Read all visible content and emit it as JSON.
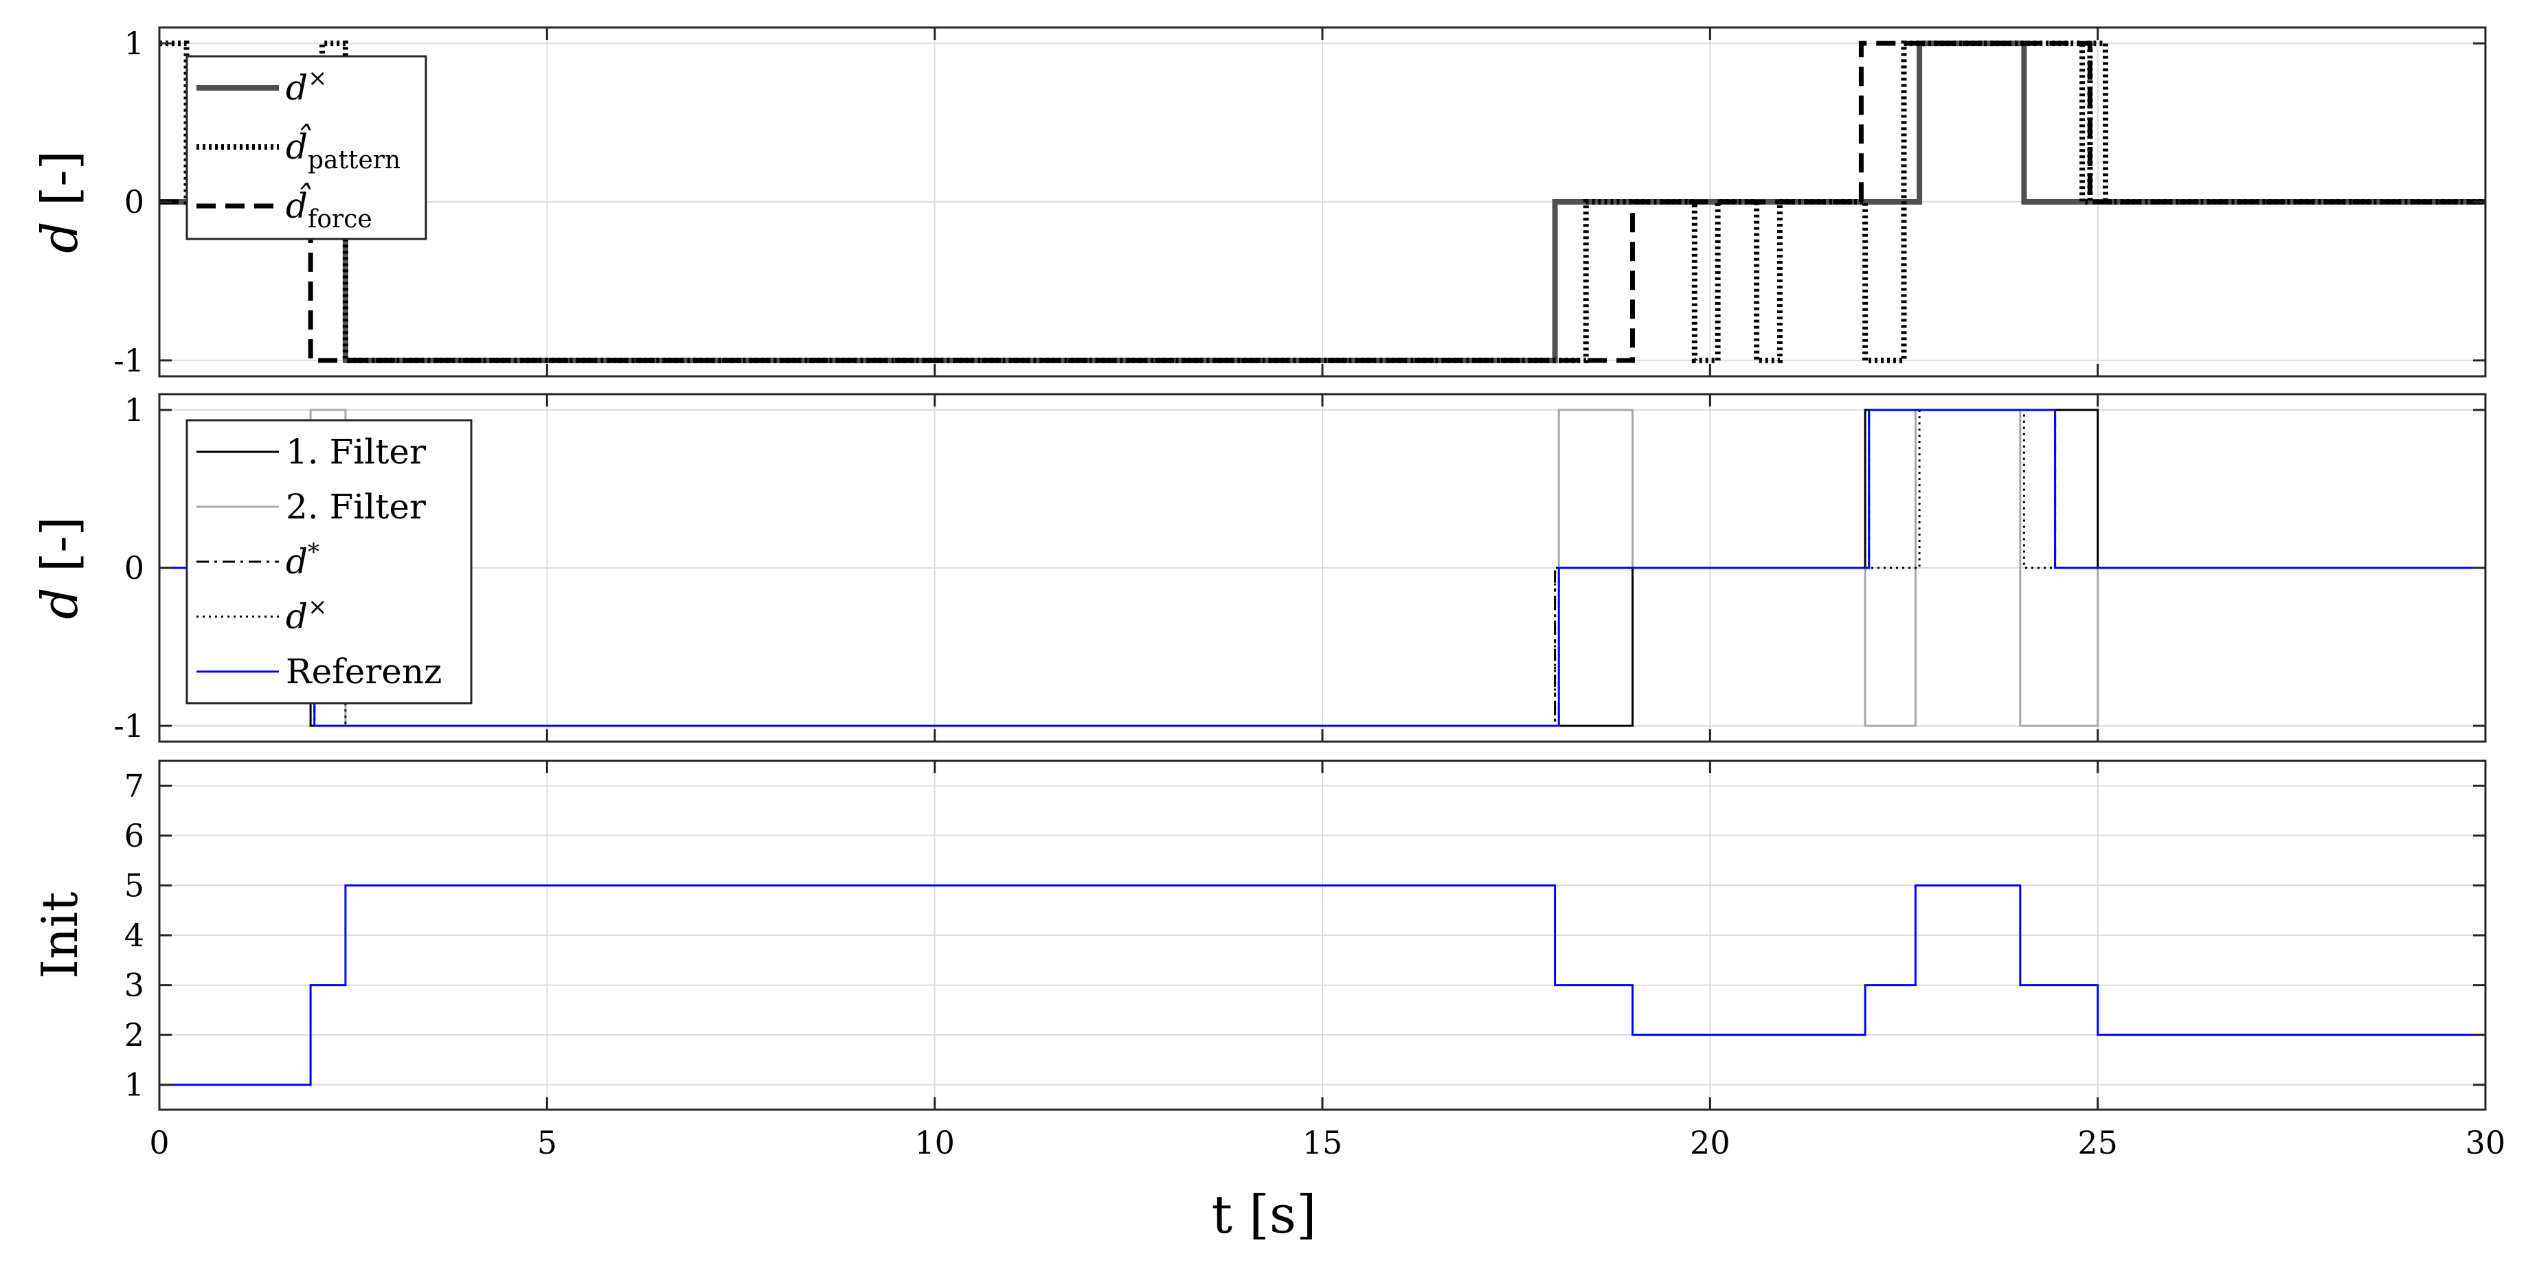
{
  "figure": {
    "xlabel": "t [s]",
    "xlim": [
      0,
      30
    ],
    "xticks": [
      0,
      5,
      10,
      15,
      20,
      25,
      30
    ],
    "grid": true
  },
  "chart_data": [
    {
      "type": "line",
      "ylabel": "d [-]",
      "xlim": [
        0,
        30
      ],
      "ylim": [
        -1.1,
        1.1
      ],
      "yticks": [
        -1,
        0,
        1
      ],
      "legend_position": "top-left",
      "series": [
        {
          "name": "d×",
          "color": "#505050",
          "style": "solid-thick",
          "points": [
            [
              0,
              0
            ],
            [
              2.4,
              0
            ],
            [
              2.4,
              -1
            ],
            [
              18.0,
              -1
            ],
            [
              18.0,
              0
            ],
            [
              22.7,
              0
            ],
            [
              22.7,
              1
            ],
            [
              24.05,
              1
            ],
            [
              24.05,
              0
            ],
            [
              30,
              0
            ]
          ]
        },
        {
          "name": "d̂pattern",
          "color": "#000000",
          "style": "dotted-thick",
          "points": [
            [
              0,
              1
            ],
            [
              0.35,
              1
            ],
            [
              0.35,
              0
            ],
            [
              2.1,
              0
            ],
            [
              2.1,
              1
            ],
            [
              2.4,
              1
            ],
            [
              2.4,
              -1
            ],
            [
              18.4,
              -1
            ],
            [
              18.4,
              0
            ],
            [
              19.8,
              0
            ],
            [
              19.8,
              -1
            ],
            [
              20.1,
              -1
            ],
            [
              20.1,
              0
            ],
            [
              20.6,
              0
            ],
            [
              20.6,
              -1
            ],
            [
              20.9,
              -1
            ],
            [
              20.9,
              0
            ],
            [
              22.0,
              0
            ],
            [
              22.0,
              -1
            ],
            [
              22.5,
              -1
            ],
            [
              22.5,
              1
            ],
            [
              24.8,
              1
            ],
            [
              24.8,
              0
            ],
            [
              24.9,
              0
            ],
            [
              24.9,
              1
            ],
            [
              25.1,
              1
            ],
            [
              25.1,
              0
            ],
            [
              30,
              0
            ]
          ]
        },
        {
          "name": "d̂force",
          "color": "#000000",
          "style": "dashed-thick",
          "points": [
            [
              0,
              0
            ],
            [
              1.95,
              0
            ],
            [
              1.95,
              -1
            ],
            [
              19.0,
              -1
            ],
            [
              19.0,
              0
            ],
            [
              21.95,
              0
            ],
            [
              21.95,
              1
            ],
            [
              24.9,
              1
            ],
            [
              24.9,
              0
            ],
            [
              30,
              0
            ]
          ]
        }
      ]
    },
    {
      "type": "line",
      "ylabel": "d [-]",
      "xlim": [
        0,
        30
      ],
      "ylim": [
        -1.1,
        1.1
      ],
      "yticks": [
        -1,
        0,
        1
      ],
      "legend_position": "top-left",
      "series": [
        {
          "name": "1. Filter",
          "color": "#000000",
          "style": "solid",
          "points": [
            [
              0,
              0
            ],
            [
              1.95,
              0
            ],
            [
              1.95,
              -1
            ],
            [
              19.0,
              -1
            ],
            [
              19.0,
              0
            ],
            [
              22.0,
              0
            ],
            [
              22.0,
              1
            ],
            [
              25.0,
              1
            ],
            [
              25.0,
              0
            ],
            [
              30,
              0
            ]
          ]
        },
        {
          "name": "2. Filter",
          "color": "#a8a8a8",
          "style": "solid",
          "points": [
            [
              0,
              0
            ],
            [
              1.95,
              0
            ],
            [
              1.95,
              1
            ],
            [
              2.4,
              1
            ],
            [
              2.4,
              -1
            ],
            [
              18.05,
              -1
            ],
            [
              18.05,
              1
            ],
            [
              19.0,
              1
            ],
            [
              19.0,
              0
            ],
            [
              22.0,
              0
            ],
            [
              22.0,
              -1
            ],
            [
              22.65,
              -1
            ],
            [
              22.65,
              1
            ],
            [
              24.0,
              1
            ],
            [
              24.0,
              -1
            ],
            [
              25.0,
              -1
            ],
            [
              25.0,
              0
            ],
            [
              30,
              0
            ]
          ]
        },
        {
          "name": "d*",
          "color": "#000000",
          "style": "dashdot",
          "points": [
            [
              0,
              0
            ],
            [
              2.0,
              0
            ],
            [
              2.0,
              -1
            ],
            [
              18.0,
              -1
            ],
            [
              18.0,
              0
            ],
            [
              22.05,
              0
            ],
            [
              22.05,
              1
            ],
            [
              24.45,
              1
            ],
            [
              24.45,
              0
            ],
            [
              30,
              0
            ]
          ]
        },
        {
          "name": "d×",
          "color": "#000000",
          "style": "dotted",
          "points": [
            [
              0,
              0
            ],
            [
              2.4,
              0
            ],
            [
              2.4,
              -1
            ],
            [
              18.0,
              -1
            ],
            [
              18.0,
              0
            ],
            [
              22.7,
              0
            ],
            [
              22.7,
              1
            ],
            [
              24.05,
              1
            ],
            [
              24.05,
              0
            ],
            [
              30,
              0
            ]
          ]
        },
        {
          "name": "Referenz",
          "color": "#0000ff",
          "style": "solid",
          "points": [
            [
              0,
              0
            ],
            [
              2.0,
              0
            ],
            [
              2.0,
              -1
            ],
            [
              18.05,
              -1
            ],
            [
              18.05,
              0
            ],
            [
              22.05,
              0
            ],
            [
              22.05,
              1
            ],
            [
              24.45,
              1
            ],
            [
              24.45,
              0
            ],
            [
              30,
              0
            ]
          ]
        }
      ]
    },
    {
      "type": "line",
      "ylabel": "Init",
      "xlim": [
        0,
        30
      ],
      "ylim": [
        0.5,
        7.5
      ],
      "yticks": [
        1,
        2,
        3,
        4,
        5,
        6,
        7
      ],
      "series": [
        {
          "color": "#0000ff",
          "style": "solid",
          "points": [
            [
              0,
              1
            ],
            [
              1.95,
              1
            ],
            [
              1.95,
              3
            ],
            [
              2.4,
              3
            ],
            [
              2.4,
              5
            ],
            [
              18.0,
              5
            ],
            [
              18.0,
              3
            ],
            [
              19.0,
              3
            ],
            [
              19.0,
              2
            ],
            [
              22.0,
              2
            ],
            [
              22.0,
              3
            ],
            [
              22.65,
              3
            ],
            [
              22.65,
              5
            ],
            [
              24.0,
              5
            ],
            [
              24.0,
              3
            ],
            [
              25.0,
              3
            ],
            [
              25.0,
              2
            ],
            [
              30,
              2
            ]
          ]
        }
      ]
    }
  ]
}
